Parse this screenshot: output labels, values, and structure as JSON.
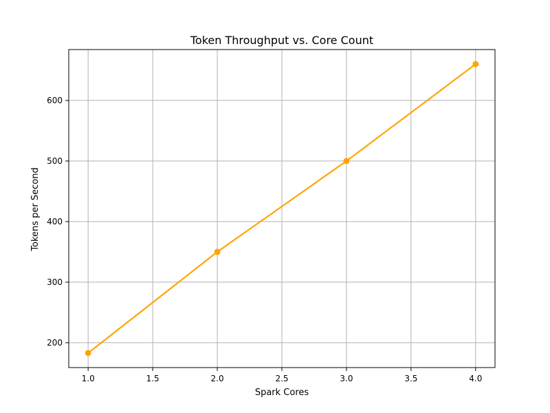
{
  "chart_data": {
    "type": "line",
    "title": "Token Throughput vs. Core Count",
    "xlabel": "Spark Cores",
    "ylabel": "Tokens per Second",
    "x": [
      1,
      2,
      3,
      4
    ],
    "series": [
      {
        "values": [
          183,
          350,
          500,
          660
        ],
        "color": "#FFA500",
        "marker": "circle"
      }
    ],
    "xlim": [
      0.85,
      4.15
    ],
    "ylim": [
      159,
      684
    ],
    "xticks": [
      1.0,
      1.5,
      2.0,
      2.5,
      3.0,
      3.5,
      4.0
    ],
    "xtick_labels": [
      "1.0",
      "1.5",
      "2.0",
      "2.5",
      "3.0",
      "3.5",
      "4.0"
    ],
    "yticks": [
      200,
      300,
      400,
      500,
      600
    ],
    "ytick_labels": [
      "200",
      "300",
      "400",
      "500",
      "600"
    ],
    "grid": true,
    "legend": false
  }
}
